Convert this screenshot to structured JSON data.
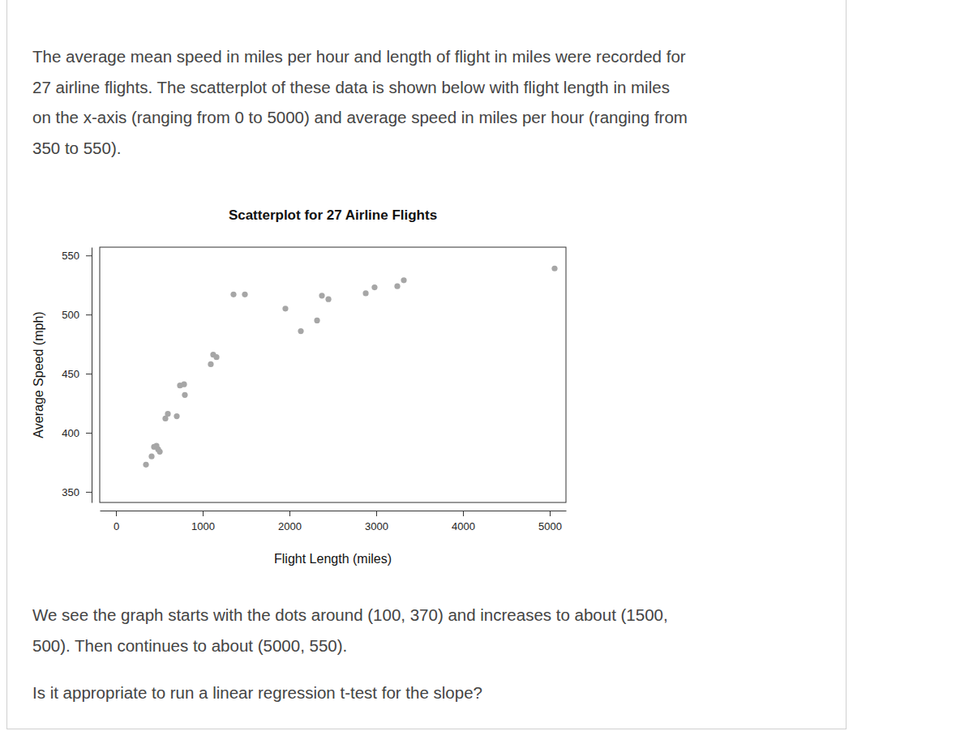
{
  "document": {
    "intro": [
      "The average mean speed in miles per hour and length of flight in miles were recorded for",
      "27 airline flights. The scatterplot of these data is shown below with flight length in miles",
      "on the x-axis (ranging from 0 to 5000) and average speed in miles per hour (ranging from",
      "350 to 550)."
    ],
    "description": [
      "We see the graph starts with the dots around (100, 370) and increases to about (1500,",
      "500). Then continues to about (5000, 550)."
    ],
    "question": "Is it appropriate to run a linear regression t-test for the slope?"
  },
  "chart_data": {
    "type": "scatter",
    "title": "Scatterplot for 27 Airline Flights",
    "x_label": "Flight Length (miles)",
    "y_label": "Average Speed (mph)",
    "x": [
      346,
      411,
      439,
      467,
      486,
      505,
      570,
      598,
      701,
      738,
      785,
      794,
      1093,
      1121,
      1159,
      1355,
      1486,
      1953,
      2131,
      2318,
      2374,
      2449,
      2879,
      2981,
      3243,
      3318,
      5056
    ],
    "values": [
      373,
      380,
      388,
      389,
      386,
      384,
      412,
      416,
      414,
      440,
      441,
      432,
      458,
      466,
      464,
      517,
      517,
      505,
      486,
      495,
      516,
      513,
      518,
      523,
      524,
      529,
      539
    ],
    "color": "#a6a6a6",
    "marker": "circle",
    "xlim": [
      -187,
      5187
    ],
    "ylim": [
      341,
      557
    ],
    "xticks": [
      0,
      1000,
      2000,
      3000,
      4000,
      5000
    ],
    "yticks": [
      350,
      400,
      450,
      500,
      550
    ]
  }
}
